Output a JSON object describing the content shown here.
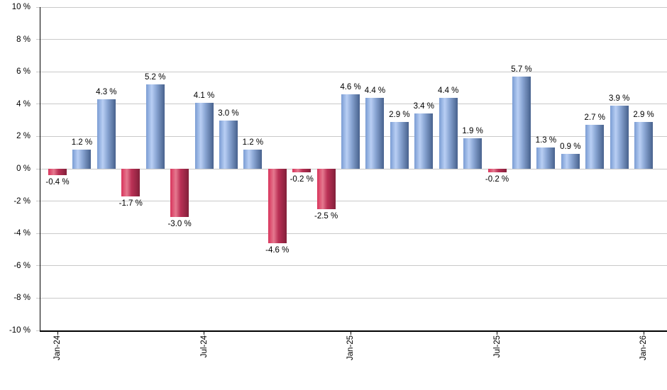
{
  "chart_data": {
    "type": "bar",
    "title": "",
    "y_axis": {
      "min": -10,
      "max": 10,
      "step": 2,
      "unit": "%",
      "ticks": [
        {
          "value": 10,
          "label": "10 %"
        },
        {
          "value": 8,
          "label": "8 %"
        },
        {
          "value": 6,
          "label": "6 %"
        },
        {
          "value": 4,
          "label": "4 %"
        },
        {
          "value": 2,
          "label": "2 %"
        },
        {
          "value": 0,
          "label": "0 %"
        },
        {
          "value": -2,
          "label": "-2 %"
        },
        {
          "value": -4,
          "label": "-4 %"
        },
        {
          "value": -6,
          "label": "-6 %"
        },
        {
          "value": -8,
          "label": "-8 %"
        },
        {
          "value": -10,
          "label": "-10 %"
        }
      ]
    },
    "x_axis": {
      "ticks": [
        {
          "bar_index": 0,
          "label": "Jan-24"
        },
        {
          "bar_index": 6,
          "label": "Jul-24"
        },
        {
          "bar_index": 12,
          "label": "Jan-25"
        },
        {
          "bar_index": 18,
          "label": "Jul-25"
        },
        {
          "bar_index": 24,
          "label": "Jan-26"
        }
      ]
    },
    "bars": [
      {
        "value": -0.4,
        "label": "-0.4 %"
      },
      {
        "value": 1.2,
        "label": "1.2 %"
      },
      {
        "value": 4.3,
        "label": "4.3 %"
      },
      {
        "value": -1.7,
        "label": "-1.7 %"
      },
      {
        "value": 5.2,
        "label": "5.2 %"
      },
      {
        "value": -3.0,
        "label": "-3.0 %"
      },
      {
        "value": 4.1,
        "label": "4.1 %"
      },
      {
        "value": 3.0,
        "label": "3.0 %"
      },
      {
        "value": 1.2,
        "label": "1.2 %"
      },
      {
        "value": -4.6,
        "label": "-4.6 %"
      },
      {
        "value": -0.2,
        "label": "-0.2 %"
      },
      {
        "value": -2.5,
        "label": "-2.5 %"
      },
      {
        "value": 4.6,
        "label": "4.6 %"
      },
      {
        "value": 4.4,
        "label": "4.4 %"
      },
      {
        "value": 2.9,
        "label": "2.9 %"
      },
      {
        "value": 3.4,
        "label": "3.4 %"
      },
      {
        "value": 4.4,
        "label": "4.4 %"
      },
      {
        "value": 1.9,
        "label": "1.9 %"
      },
      {
        "value": -0.2,
        "label": "-0.2 %"
      },
      {
        "value": 5.7,
        "label": "5.7 %"
      },
      {
        "value": 1.3,
        "label": "1.3 %"
      },
      {
        "value": 0.9,
        "label": "0.9 %"
      },
      {
        "value": 2.7,
        "label": "2.7 %"
      },
      {
        "value": 3.9,
        "label": "3.9 %"
      },
      {
        "value": 2.9,
        "label": "2.9 %"
      }
    ],
    "colors": {
      "positive_gradient": [
        "#7a9cd3",
        "#b9cff4",
        "#8aa6d4",
        "#47618d"
      ],
      "negative_gradient": [
        "#d8335b",
        "#e5798f",
        "#bb3156",
        "#82203a"
      ],
      "gridline": "#c9c9c9",
      "axis": "#000000",
      "text": "#000000",
      "background": "#ffffff"
    },
    "grid": true,
    "legend": false
  }
}
